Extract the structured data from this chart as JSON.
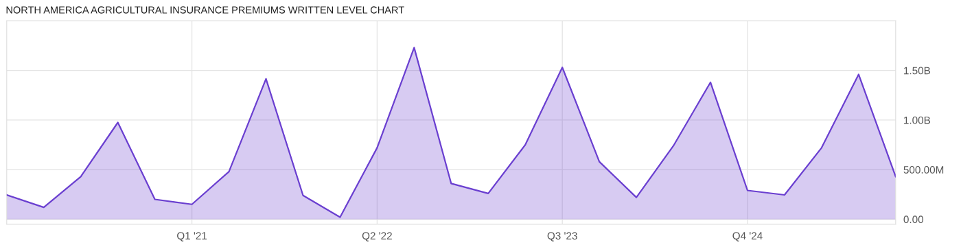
{
  "chart_data": {
    "type": "area",
    "title": "NORTH AMERICA AGRICULTURAL INSURANCE PREMIUMS WRITTEN LEVEL CHART",
    "categories": [
      null,
      null,
      null,
      null,
      null,
      "Q1 '21",
      null,
      null,
      null,
      null,
      "Q2 '22",
      null,
      null,
      null,
      null,
      "Q3 '23",
      null,
      null,
      null,
      null,
      "Q4 '24",
      null,
      null,
      null,
      null
    ],
    "series": [
      {
        "color": "#6a3fd0",
        "values": [
          245000000,
          120000000,
          430000000,
          975000000,
          200000000,
          150000000,
          480000000,
          1415000000,
          240000000,
          20000000,
          720000000,
          1730000000,
          360000000,
          260000000,
          750000000,
          1530000000,
          580000000,
          220000000,
          740000000,
          1380000000,
          290000000,
          245000000,
          720000000,
          1460000000,
          430000000
        ]
      }
    ],
    "ylim": [
      -50000000,
      2000000000
    ],
    "yticks": [
      {
        "value": 0,
        "label": "0.00"
      },
      {
        "value": 500000000,
        "label": "500.00M"
      },
      {
        "value": 1000000000,
        "label": "1.00B"
      },
      {
        "value": 1500000000,
        "label": "1.50B"
      }
    ],
    "grid": true,
    "legend": false
  }
}
